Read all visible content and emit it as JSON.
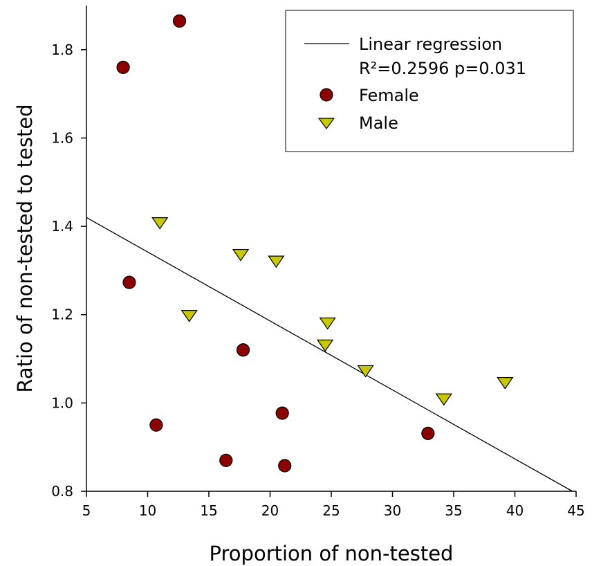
{
  "chart_data": {
    "type": "scatter",
    "title": "",
    "xlabel": "Proportion of non-tested",
    "ylabel": "Ratio of non-tested to tested",
    "xlim": [
      5,
      45
    ],
    "ylim": [
      0.8,
      1.9
    ],
    "xticks": [
      5,
      10,
      15,
      20,
      25,
      30,
      35,
      40,
      45
    ],
    "yticks": [
      0.8,
      1.0,
      1.2,
      1.4,
      1.6,
      1.8
    ],
    "ytick_labels": [
      "0.8",
      "1.0",
      "1.2",
      "1.4",
      "1.6",
      "1.8"
    ],
    "grid": false,
    "legend_position": "top-right",
    "series": [
      {
        "name": "Female",
        "marker": "circle",
        "color": "#8b0000",
        "x": [
          8.0,
          12.6,
          8.5,
          10.7,
          17.8,
          16.4,
          21.0,
          21.2,
          32.9
        ],
        "y": [
          1.76,
          1.865,
          1.273,
          0.95,
          1.12,
          0.87,
          0.977,
          0.858,
          0.931
        ]
      },
      {
        "name": "Male",
        "marker": "triangle-down",
        "color": "#c8c800",
        "x": [
          11.0,
          13.4,
          17.6,
          20.5,
          24.7,
          24.5,
          27.8,
          34.2,
          39.2
        ],
        "y": [
          1.407,
          1.197,
          1.335,
          1.32,
          1.18,
          1.13,
          1.072,
          1.008,
          1.045
        ]
      }
    ],
    "regression": {
      "name": "Linear regression",
      "stat_label": "R²=0.2596 p=0.031",
      "x": [
        5,
        44.7
      ],
      "y": [
        1.42,
        0.8
      ],
      "color": "#000000"
    }
  }
}
